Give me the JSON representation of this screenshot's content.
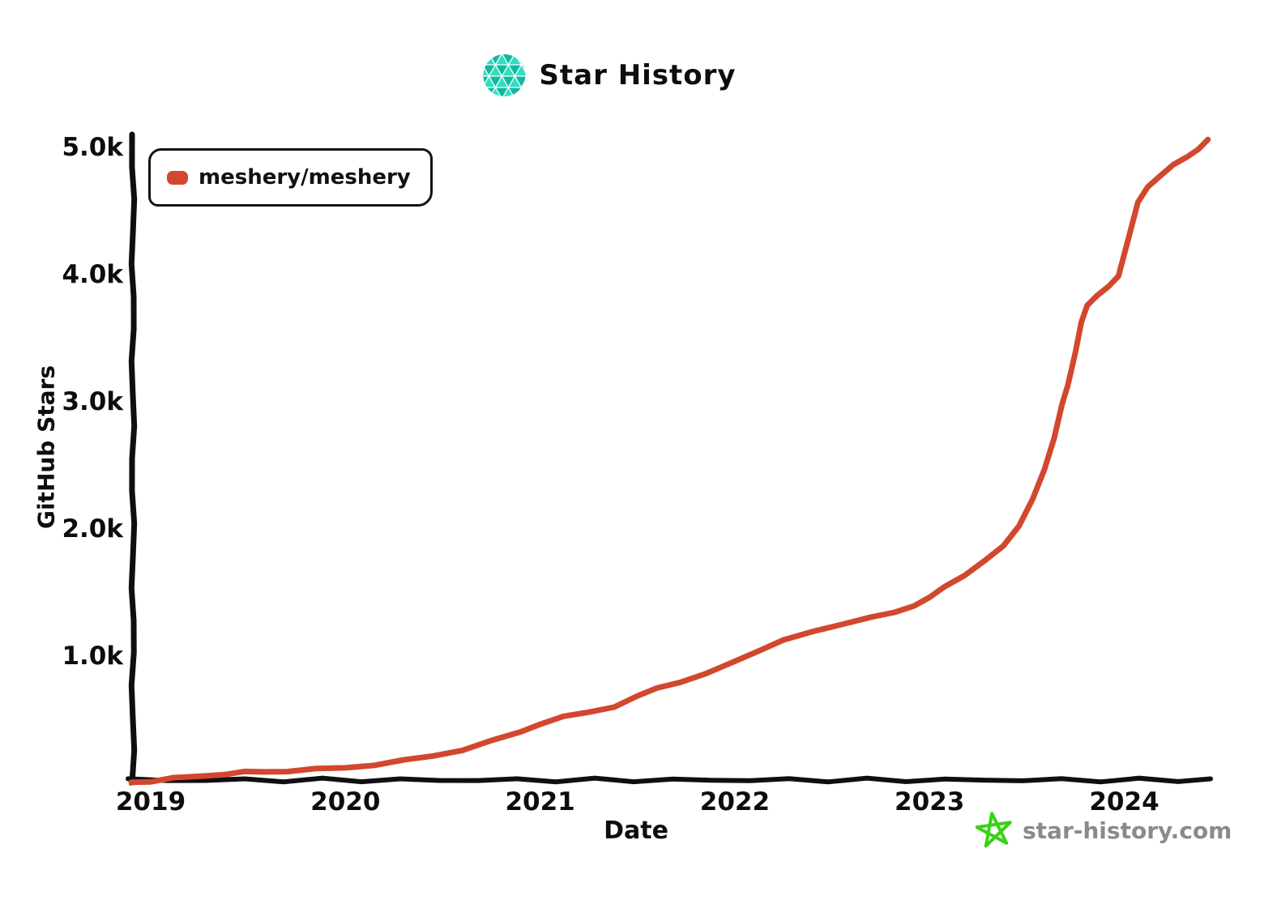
{
  "header": {
    "title": "Star History"
  },
  "legend": {
    "series_label": "meshery/meshery"
  },
  "watermark": {
    "text": "star-history.com"
  },
  "colors": {
    "series": "#d2472e",
    "axis": "#0f0f0f",
    "text": "#0d0d0d",
    "watermark_text": "#8a8a8a",
    "logo_light": "#33dec0",
    "logo_dark": "#0fb9a0",
    "star_green": "#36d313"
  },
  "chart_data": {
    "type": "line",
    "title": "Star History",
    "xlabel": "Date",
    "ylabel": "GitHub Stars",
    "legend_position": "top-left",
    "grid": false,
    "xlim": [
      2018.88,
      2024.45
    ],
    "ylim": [
      0,
      5100
    ],
    "x_ticks": [
      2019,
      2020,
      2021,
      2022,
      2023,
      2024
    ],
    "x_tick_labels": [
      "2019",
      "2020",
      "2021",
      "2022",
      "2023",
      "2024"
    ],
    "y_ticks": [
      1000,
      2000,
      3000,
      4000,
      5000
    ],
    "y_tick_labels": [
      "1.0k",
      "2.0k",
      "3.0k",
      "4.0k",
      "5.0k"
    ],
    "series": [
      {
        "name": "meshery/meshery",
        "color": "#d2472e",
        "points": [
          [
            2018.9,
            8
          ],
          [
            2019.0,
            18
          ],
          [
            2019.12,
            38
          ],
          [
            2019.25,
            55
          ],
          [
            2019.38,
            75
          ],
          [
            2019.48,
            86
          ],
          [
            2019.58,
            90
          ],
          [
            2019.7,
            98
          ],
          [
            2019.85,
            110
          ],
          [
            2020.0,
            122
          ],
          [
            2020.15,
            148
          ],
          [
            2020.3,
            178
          ],
          [
            2020.45,
            215
          ],
          [
            2020.6,
            265
          ],
          [
            2020.75,
            330
          ],
          [
            2020.9,
            405
          ],
          [
            2021.0,
            470
          ],
          [
            2021.12,
            520
          ],
          [
            2021.25,
            560
          ],
          [
            2021.38,
            605
          ],
          [
            2021.5,
            680
          ],
          [
            2021.6,
            750
          ],
          [
            2021.72,
            800
          ],
          [
            2021.85,
            855
          ],
          [
            2022.0,
            960
          ],
          [
            2022.12,
            1045
          ],
          [
            2022.25,
            1120
          ],
          [
            2022.4,
            1195
          ],
          [
            2022.55,
            1255
          ],
          [
            2022.7,
            1300
          ],
          [
            2022.82,
            1345
          ],
          [
            2022.92,
            1400
          ],
          [
            2023.0,
            1455
          ],
          [
            2023.08,
            1550
          ],
          [
            2023.18,
            1640
          ],
          [
            2023.28,
            1740
          ],
          [
            2023.38,
            1870
          ],
          [
            2023.46,
            2030
          ],
          [
            2023.53,
            2230
          ],
          [
            2023.59,
            2470
          ],
          [
            2023.64,
            2720
          ],
          [
            2023.68,
            2970
          ],
          [
            2023.71,
            3130
          ],
          [
            2023.75,
            3400
          ],
          [
            2023.78,
            3620
          ],
          [
            2023.81,
            3760
          ],
          [
            2023.86,
            3840
          ],
          [
            2023.92,
            3900
          ],
          [
            2023.97,
            3990
          ],
          [
            2024.02,
            4280
          ],
          [
            2024.07,
            4560
          ],
          [
            2024.12,
            4690
          ],
          [
            2024.18,
            4775
          ],
          [
            2024.25,
            4855
          ],
          [
            2024.32,
            4925
          ],
          [
            2024.38,
            4990
          ],
          [
            2024.43,
            5055
          ]
        ]
      }
    ]
  }
}
